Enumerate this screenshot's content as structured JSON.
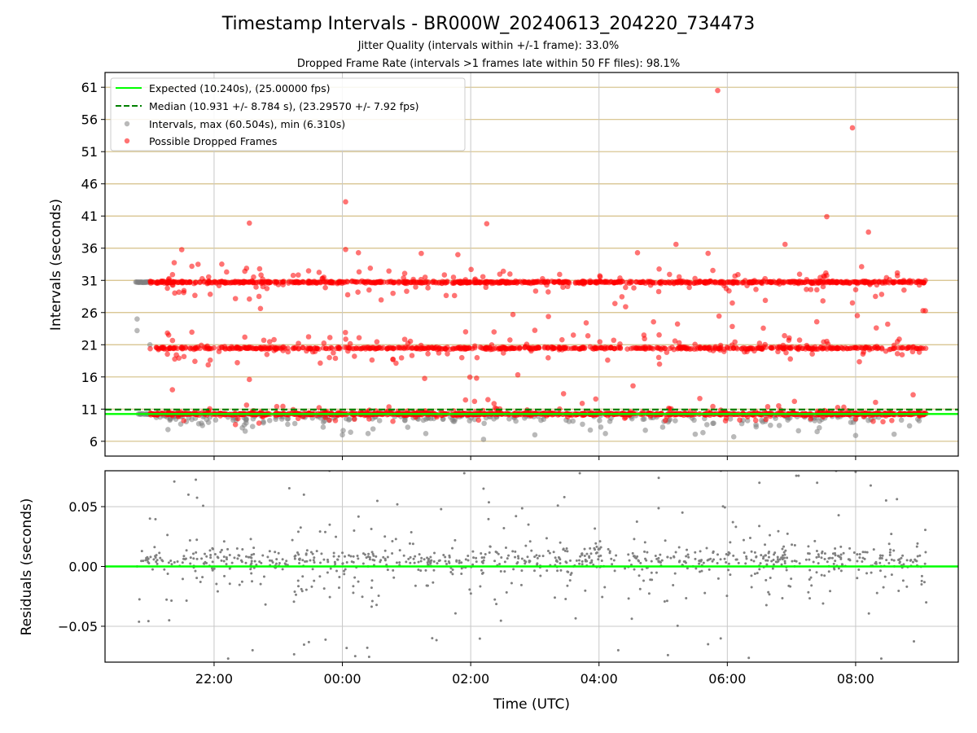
{
  "chart_data": {
    "type": "scatter",
    "title": "Timestamp Intervals - BR000W_20240613_204220_734473",
    "subtitles": [
      "Jitter Quality (intervals within +/-1 frame): 33.0%",
      "Dropped Frame Rate (intervals >1 frames late within 50 FF files): 98.1%"
    ],
    "xlabel": "Time (UTC)",
    "x_ticks": [
      "22:00",
      "00:00",
      "02:00",
      "04:00",
      "06:00",
      "08:00"
    ],
    "x_range_hours": [
      20.3,
      33.6
    ],
    "top_panel": {
      "ylabel": "Intervals (seconds)",
      "ylim": [
        3.7,
        63.3
      ],
      "y_ticks": [
        6,
        11,
        16,
        21,
        26,
        31,
        36,
        41,
        46,
        51,
        56,
        61
      ],
      "expected": 10.24,
      "median": 10.931,
      "legend_position": "upper-left",
      "legend": [
        "Expected (10.240s), (25.00000 fps)",
        "Median (10.931 +/- 8.784 s), (23.29570 +/- 7.92 fps)",
        "Intervals, max (60.504s), min (6.310s)",
        "Possible Dropped Frames"
      ],
      "series": [
        {
          "name": "Expected (10.240s), (25.00000 fps)",
          "kind": "hline",
          "y": 10.24,
          "color": "#00ff00"
        },
        {
          "name": "Median (10.931 +/- 8.784 s), (23.29570 +/- 7.92 fps)",
          "kind": "hline-dashed",
          "y": 10.931,
          "color": "#008000"
        },
        {
          "name": "Intervals, max (60.504s), min (6.310s)",
          "kind": "scatter",
          "color": "#808080",
          "notes": "early points before ~21:00 and sub-expected intervals (6.3-10 s)",
          "sample_points": [
            [
              20.83,
              30.7
            ],
            [
              20.88,
              30.7
            ],
            [
              20.93,
              30.7
            ],
            [
              20.8,
              25.0
            ],
            [
              20.8,
              23.2
            ],
            [
              20.85,
              10.2
            ],
            [
              20.95,
              10.2
            ],
            [
              21.0,
              21.0
            ],
            [
              21.1,
              9.7
            ],
            [
              22.6,
              8.3
            ],
            [
              23.7,
              8.2
            ],
            [
              24.0,
              7.0
            ],
            [
              24.4,
              7.2
            ],
            [
              25.3,
              7.2
            ],
            [
              26.2,
              6.3
            ],
            [
              27.0,
              7.0
            ],
            [
              28.1,
              7.2
            ],
            [
              29.5,
              7.1
            ],
            [
              30.1,
              6.7
            ],
            [
              31.4,
              7.5
            ],
            [
              32.0,
              6.9
            ],
            [
              32.6,
              7.1
            ]
          ]
        },
        {
          "name": "Possible Dropped Frames",
          "kind": "scatter",
          "color": "#ff0000",
          "bands": [
            {
              "level": 10.24,
              "x_range": [
                21.0,
                33.1
              ]
            },
            {
              "level": 20.48,
              "x_range": [
                21.0,
                33.1
              ]
            },
            {
              "level": 30.72,
              "x_range": [
                21.0,
                33.1
              ]
            }
          ],
          "outliers": [
            [
              21.35,
              14.0
            ],
            [
              21.75,
              33.5
            ],
            [
              22.55,
              39.9
            ],
            [
              22.55,
              15.6
            ],
            [
              22.55,
              28.1
            ],
            [
              24.05,
              43.2
            ],
            [
              24.05,
              35.8
            ],
            [
              24.25,
              35.3
            ],
            [
              26.25,
              39.8
            ],
            [
              25.8,
              35.0
            ],
            [
              27.6,
              22.5
            ],
            [
              27.8,
              24.4
            ],
            [
              28.7,
              22.5
            ],
            [
              28.6,
              35.3
            ],
            [
              29.2,
              36.6
            ],
            [
              29.7,
              35.2
            ],
            [
              29.85,
              60.5
            ],
            [
              30.9,
              36.6
            ],
            [
              31.55,
              40.9
            ],
            [
              31.95,
              54.7
            ],
            [
              31.95,
              27.5
            ],
            [
              32.2,
              38.5
            ],
            [
              32.5,
              24.2
            ],
            [
              33.05,
              26.3
            ]
          ]
        }
      ]
    },
    "bottom_panel": {
      "ylabel": "Residuals (seconds)",
      "ylim": [
        -0.08,
        0.08
      ],
      "y_ticks": [
        "0.05",
        "0.00",
        "−0.05"
      ],
      "y_tick_values": [
        0.05,
        0.0,
        -0.05
      ],
      "zero_line": 0.0,
      "series": [
        {
          "name": "",
          "kind": "scatter",
          "color": "#808080",
          "sample_points": [
            [
              20.8,
              0.0
            ],
            [
              21.0,
              0.04
            ],
            [
              21.3,
              -0.045
            ],
            [
              21.6,
              0.06
            ],
            [
              22.1,
              0.012
            ],
            [
              22.6,
              -0.07
            ],
            [
              23.4,
              0.06
            ],
            [
              23.8,
              0.08
            ],
            [
              24.2,
              -0.075
            ],
            [
              24.4,
              0.0
            ],
            [
              25.4,
              -0.06
            ],
            [
              25.9,
              0.078
            ],
            [
              26.2,
              0.065
            ],
            [
              26.9,
              0.035
            ],
            [
              27.7,
              0.078
            ],
            [
              28.3,
              -0.07
            ],
            [
              29.3,
              0.045
            ],
            [
              29.7,
              -0.065
            ],
            [
              29.9,
              0.08
            ],
            [
              30.5,
              0.07
            ],
            [
              31.4,
              0.07
            ],
            [
              32.0,
              0.079
            ],
            [
              32.4,
              -0.077
            ],
            [
              33.1,
              -0.03
            ]
          ]
        }
      ]
    },
    "grid": true
  }
}
